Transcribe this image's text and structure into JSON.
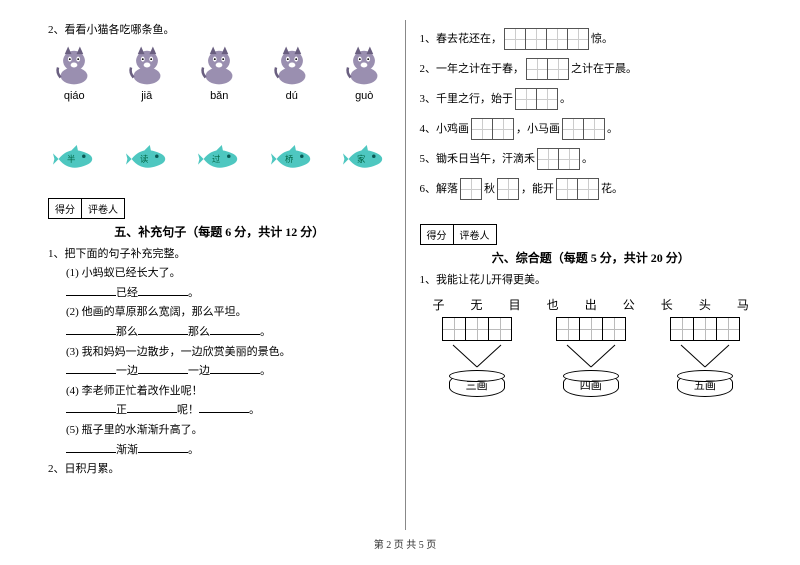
{
  "footer": "第 2 页  共 5 页",
  "left": {
    "q2_intro": "2、看看小猫各吃哪条鱼。",
    "pinyin": [
      "qiáo",
      "jiā",
      "bǎn",
      "dú",
      "guò"
    ],
    "fish_chars": [
      "半",
      "读",
      "过",
      "桥",
      "家"
    ],
    "cat_color_body": "#9a8fb0",
    "cat_color_dark": "#6a5f80",
    "fish_color": "#4ec7c0",
    "fish_eye": "#0a5a55",
    "score_labels": [
      "得分",
      "评卷人"
    ],
    "section5_title": "五、补充句子（每题 6 分，共计 12 分）",
    "s5_q1": "1、把下面的句子补充完整。",
    "s5_items": [
      {
        "a": "(1) 小蚂蚁已经长大了。",
        "b": "已经"
      },
      {
        "a": "(2) 他画的草原那么宽阔，那么平坦。",
        "b": "那么",
        "c": "那么"
      },
      {
        "a": "(3) 我和妈妈一边散步，一边欣赏美丽的景色。",
        "b": "一边",
        "c": "一边"
      },
      {
        "a": "(4) 李老师正忙着改作业呢！",
        "b": "正",
        "c": "呢！"
      },
      {
        "a": "(5) 瓶子里的水渐渐升高了。",
        "b": "渐渐"
      }
    ],
    "s5_q2": "2、日积月累。"
  },
  "right": {
    "fill_lines": [
      {
        "pre": "1、春去花还在，",
        "cells": 4,
        "post": "惊。"
      },
      {
        "pre": "2、一年之计在于春，",
        "cells": 2,
        "post": "之计在于晨。"
      },
      {
        "pre": "3、千里之行，始于",
        "cells": 2,
        "post": "。"
      },
      {
        "pre": "4、小鸡画",
        "cells": 2,
        "mid": "，小马画",
        "cells2": 2,
        "post2": "。"
      },
      {
        "pre": "5、锄禾日当午，汗滴禾",
        "cells": 2,
        "post": "。"
      },
      {
        "pre": "6、解落",
        "cells": 1,
        "mid": "秋",
        "cells2": 1,
        "mid2": "，能开",
        "cells3": 2,
        "post3": "花。"
      }
    ],
    "score_labels": [
      "得分",
      "评卷人"
    ],
    "section6_title": "六、综合题（每题 5 分，共计 20 分）",
    "s6_q1": "1、我能让花儿开得更美。",
    "chars": [
      "子",
      "无",
      "目",
      "也",
      "出",
      "公",
      "长",
      "头",
      "马"
    ],
    "bins": [
      "三画",
      "四画",
      "五画"
    ]
  }
}
